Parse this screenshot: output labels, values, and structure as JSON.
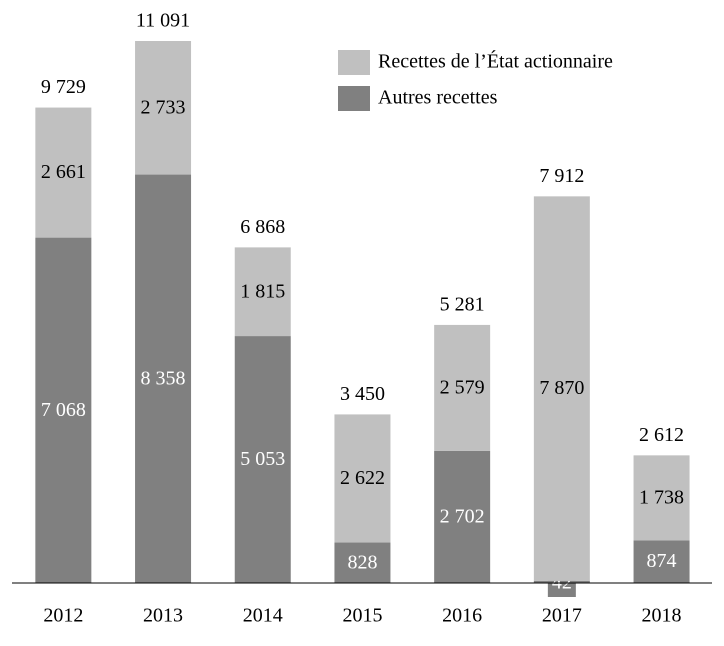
{
  "chart_data": {
    "type": "stacked-bar",
    "categories": [
      "2012",
      "2013",
      "2014",
      "2015",
      "2016",
      "2017",
      "2018"
    ],
    "series": [
      {
        "name": "Autres recettes",
        "color": "#808080",
        "label_color": "#ffffff",
        "values": [
          7068,
          8358,
          5053,
          828,
          2702,
          42,
          874
        ],
        "value_labels": [
          "7 068",
          "8 358",
          "5 053",
          "828",
          "2 702",
          "42",
          "874"
        ]
      },
      {
        "name": "Recettes de l’État actionnaire",
        "color": "#c0c0c0",
        "label_color": "#000000",
        "values": [
          2661,
          2733,
          1815,
          2622,
          2579,
          7870,
          1738
        ],
        "value_labels": [
          "2 661",
          "2 733",
          "1 815",
          "2 622",
          "2 579",
          "7 870",
          "1 738"
        ]
      }
    ],
    "totals": {
      "values": [
        9729,
        11091,
        6868,
        3450,
        5281,
        7912,
        2612
      ],
      "value_labels": [
        "9 729",
        "11 091",
        "6 868",
        "3 450",
        "5 281",
        "7 912",
        "2 612"
      ]
    },
    "legend": "top-right"
  }
}
